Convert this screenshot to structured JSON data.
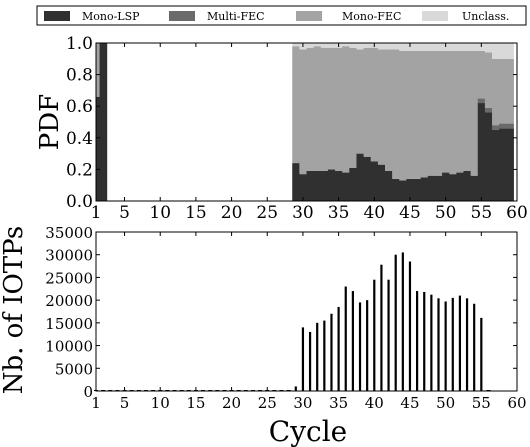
{
  "legend": {
    "items": [
      {
        "label": "Mono-LSP",
        "color": "#303030"
      },
      {
        "label": "Multi-FEC",
        "color": "#6a6a6a"
      },
      {
        "label": "Mono-FEC",
        "color": "#a3a3a3"
      },
      {
        "label": "Unclass.",
        "color": "#d9d9d9"
      }
    ]
  },
  "chart_data": [
    {
      "type": "bar",
      "stacked": true,
      "xlabel": "",
      "ylabel": "PDF",
      "xlim": [
        1,
        60
      ],
      "ylim": [
        0,
        1
      ],
      "xticks": [
        "1",
        "5",
        "10",
        "15",
        "20",
        "25",
        "30",
        "35",
        "40",
        "45",
        "50",
        "55",
        "60"
      ],
      "yticks": [
        "0.0",
        "0.2",
        "0.4",
        "0.6",
        "0.8",
        "1.0"
      ],
      "x": [
        1,
        2,
        29,
        30,
        31,
        32,
        33,
        34,
        35,
        36,
        37,
        38,
        39,
        40,
        41,
        42,
        43,
        44,
        45,
        46,
        47,
        48,
        49,
        50,
        51,
        52,
        53,
        54,
        55,
        56,
        57,
        58,
        59
      ],
      "series": [
        {
          "name": "Mono-LSP",
          "color": "#303030",
          "values": [
            0.66,
            1.0,
            0.24,
            0.17,
            0.19,
            0.19,
            0.19,
            0.2,
            0.19,
            0.18,
            0.21,
            0.3,
            0.28,
            0.25,
            0.23,
            0.19,
            0.14,
            0.13,
            0.14,
            0.14,
            0.15,
            0.16,
            0.16,
            0.18,
            0.17,
            0.18,
            0.19,
            0.16,
            0.62,
            0.56,
            0.45,
            0.46,
            0.46
          ]
        },
        {
          "name": "Multi-FEC",
          "color": "#6a6a6a",
          "values": [
            0.0,
            0.0,
            0.0,
            0.0,
            0.0,
            0.0,
            0.0,
            0.0,
            0.0,
            0.0,
            0.0,
            0.0,
            0.0,
            0.0,
            0.0,
            0.0,
            0.0,
            0.0,
            0.0,
            0.0,
            0.0,
            0.0,
            0.0,
            0.0,
            0.0,
            0.0,
            0.0,
            0.0,
            0.03,
            0.03,
            0.03,
            0.03,
            0.03
          ]
        },
        {
          "name": "Mono-FEC",
          "color": "#a3a3a3",
          "values": [
            0.34,
            0.0,
            0.74,
            0.79,
            0.78,
            0.79,
            0.78,
            0.77,
            0.78,
            0.8,
            0.76,
            0.66,
            0.69,
            0.72,
            0.73,
            0.77,
            0.82,
            0.82,
            0.81,
            0.81,
            0.8,
            0.79,
            0.79,
            0.77,
            0.78,
            0.77,
            0.76,
            0.79,
            0.3,
            0.35,
            0.42,
            0.41,
            0.41
          ]
        },
        {
          "name": "Unclass.",
          "color": "#d9d9d9",
          "values": [
            0.0,
            0.0,
            0.02,
            0.04,
            0.03,
            0.02,
            0.03,
            0.03,
            0.03,
            0.02,
            0.03,
            0.04,
            0.03,
            0.03,
            0.04,
            0.04,
            0.04,
            0.05,
            0.05,
            0.05,
            0.05,
            0.05,
            0.05,
            0.05,
            0.05,
            0.05,
            0.05,
            0.05,
            0.05,
            0.06,
            0.1,
            0.1,
            0.1
          ]
        }
      ]
    },
    {
      "type": "bar",
      "xlabel": "Cycle",
      "ylabel": "Nb. of IOTPs",
      "xlim": [
        1,
        60
      ],
      "ylim": [
        0,
        35000
      ],
      "xticks": [
        "1",
        "5",
        "10",
        "15",
        "20",
        "25",
        "30",
        "35",
        "40",
        "45",
        "50",
        "55",
        "60"
      ],
      "yticks": [
        "0",
        "5000",
        "10000",
        "15000",
        "20000",
        "25000",
        "30000",
        "35000"
      ],
      "x": [
        1,
        2,
        3,
        4,
        5,
        6,
        7,
        8,
        9,
        10,
        11,
        12,
        13,
        14,
        15,
        16,
        17,
        18,
        19,
        20,
        21,
        22,
        23,
        24,
        25,
        26,
        27,
        28,
        29,
        30,
        31,
        32,
        33,
        34,
        35,
        36,
        37,
        38,
        39,
        40,
        41,
        42,
        43,
        44,
        45,
        46,
        47,
        48,
        49,
        50,
        51,
        52,
        53,
        54,
        55,
        56
      ],
      "values": [
        0,
        0,
        0,
        0,
        0,
        0,
        0,
        0,
        0,
        0,
        0,
        0,
        0,
        0,
        0,
        0,
        0,
        0,
        0,
        0,
        0,
        0,
        0,
        0,
        0,
        0,
        0,
        0,
        1000,
        14000,
        13000,
        15000,
        15500,
        17000,
        18500,
        23000,
        22000,
        19500,
        20000,
        24500,
        27800,
        24500,
        30000,
        30500,
        28500,
        22000,
        21800,
        21200,
        20400,
        19700,
        20500,
        21000,
        20400,
        19200,
        16100,
        0
      ]
    }
  ]
}
